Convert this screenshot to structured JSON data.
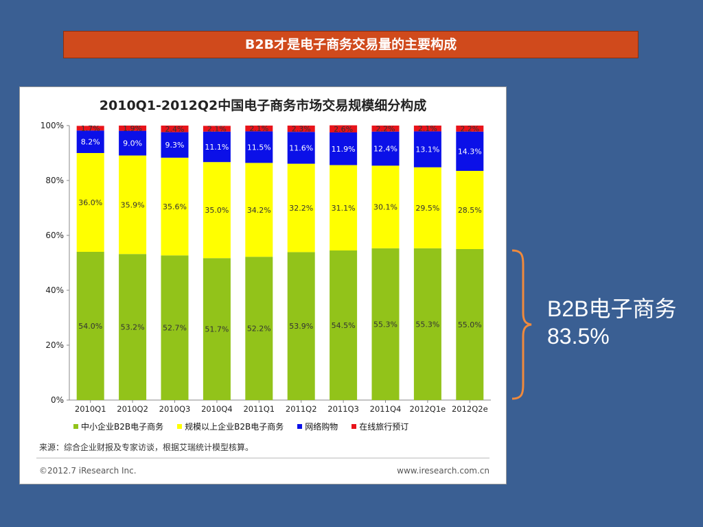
{
  "banner": {
    "title": "B2B才是电子商务交易量的主要构成"
  },
  "callout": {
    "line1": "B2B电子商务",
    "line2": "83.5%"
  },
  "chart_data": {
    "type": "bar",
    "stacked": true,
    "title": "2010Q1-2012Q2中国电子商务市场交易规模细分构成",
    "categories": [
      "2010Q1",
      "2010Q2",
      "2010Q3",
      "2010Q4",
      "2011Q1",
      "2011Q2",
      "2011Q3",
      "2011Q4",
      "2012Q1e",
      "2012Q2e"
    ],
    "ylim": [
      0,
      100
    ],
    "yticks": [
      "0%",
      "20%",
      "40%",
      "60%",
      "80%",
      "100%"
    ],
    "grid": false,
    "legend_position": "bottom",
    "series": [
      {
        "name": "中小企业B2B电子商务",
        "color": "#92c31a",
        "values": [
          54.0,
          53.2,
          52.7,
          51.7,
          52.2,
          53.9,
          54.5,
          55.3,
          55.3,
          55.0
        ]
      },
      {
        "name": "规模以上企业B2B电子商务",
        "color": "#ffff00",
        "values": [
          36.0,
          35.9,
          35.6,
          35.0,
          34.2,
          32.2,
          31.1,
          30.1,
          29.5,
          28.5
        ]
      },
      {
        "name": "网络购物",
        "color": "#0b10e8",
        "values": [
          8.2,
          9.0,
          9.3,
          11.1,
          11.5,
          11.6,
          11.9,
          12.4,
          13.1,
          14.3
        ]
      },
      {
        "name": "在线旅行预订",
        "color": "#e8131a",
        "values": [
          1.7,
          1.9,
          2.4,
          2.1,
          2.1,
          2.3,
          2.6,
          2.2,
          2.1,
          2.2
        ]
      }
    ],
    "source": "来源：综合企业财报及专家访谈，根据艾瑞统计模型核算。",
    "copyright": "©2012.7 iResearch Inc.",
    "website": "www.iresearch.com.cn"
  }
}
